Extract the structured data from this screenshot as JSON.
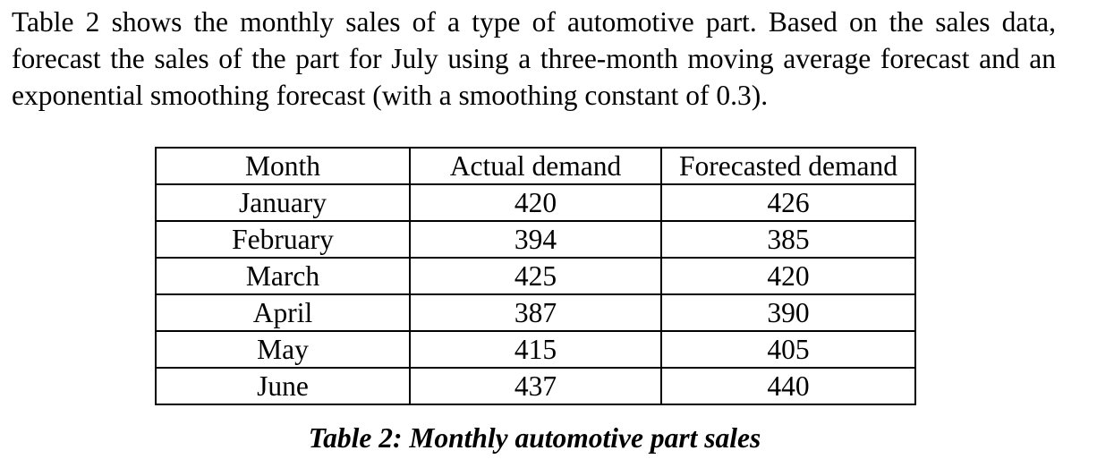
{
  "page": {
    "background_color": "#ffffff",
    "text_color": "#000000"
  },
  "problem_statement": {
    "lines": [
      "Table 2 shows the monthly sales of a type of automotive part. Based on the sales data,",
      "forecast the sales of the part for July using a three-month moving average forecast and an",
      "exponential smoothing forecast (with a smoothing constant of 0.3)."
    ],
    "full_text": "Table 2 shows the monthly sales of a type of automotive part. Based on the sales data, forecast the sales of the part for July using a three-month moving average forecast and an exponential smoothing forecast (with a smoothing constant of 0.3)."
  },
  "table": {
    "headers": [
      "Month",
      "Actual demand",
      "Forecasted demand"
    ],
    "rows": [
      {
        "month": "January",
        "actual": "420",
        "forecast": "426"
      },
      {
        "month": "February",
        "actual": "394",
        "forecast": "385"
      },
      {
        "month": "March",
        "actual": "425",
        "forecast": "420"
      },
      {
        "month": "April",
        "actual": "387",
        "forecast": "390"
      },
      {
        "month": "May",
        "actual": "415",
        "forecast": "405"
      },
      {
        "month": "June",
        "actual": "437",
        "forecast": "440"
      }
    ],
    "caption": "Table 2: Monthly automotive part sales"
  }
}
